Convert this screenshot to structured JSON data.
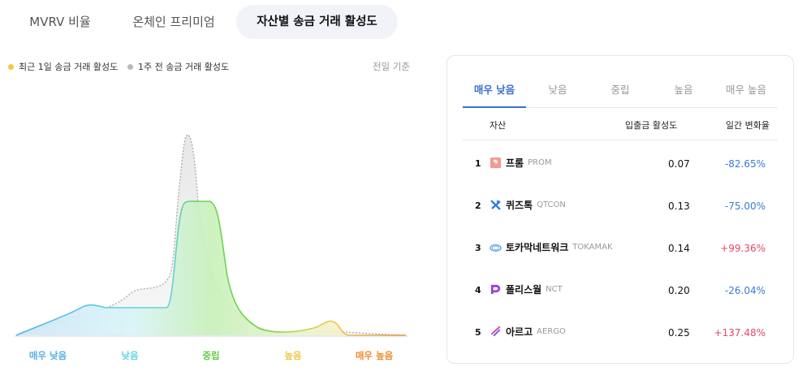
{
  "tabs": [
    {
      "label": "MVRV 비율"
    },
    {
      "label": "온체인 프리미엄"
    },
    {
      "label": "자산별 송금 거래 활성도"
    }
  ],
  "active_tab": 2,
  "legend": {
    "items": [
      {
        "label": "최근 1일 송금 거래 활성도",
        "color": "#f5c83b"
      },
      {
        "label": "1주 전 송금 거래 활성도",
        "color": "#b9b9b9"
      }
    ],
    "note": "전일 기준"
  },
  "chart_data": {
    "type": "area",
    "series": [
      {
        "name": "최근 1일 송금 거래 활성도",
        "color": "#f5c83b"
      },
      {
        "name": "1주 전 송금 거래 활성도",
        "color": "#b9b9b9"
      }
    ],
    "zones": [
      {
        "label": "매우 낮음",
        "color": "#5aaee8"
      },
      {
        "label": "낮음",
        "color": "#65d5e8"
      },
      {
        "label": "중립",
        "color": "#66cc44"
      },
      {
        "label": "높음",
        "color": "#f3c64a"
      },
      {
        "label": "매우 높음",
        "color": "#ef8a2c"
      }
    ]
  },
  "panel": {
    "tabs": [
      "매우 낮음",
      "낮음",
      "중립",
      "높음",
      "매우 높음"
    ],
    "active_tab": 0,
    "headers": {
      "asset": "자산",
      "activity": "입출금 활성도",
      "change": "일간 변화율"
    },
    "rows": [
      {
        "rank": "1",
        "name": "프롬",
        "symbol": "PROM",
        "value": "0.07",
        "change": "-82.65%",
        "icon": "prom-icon"
      },
      {
        "rank": "2",
        "name": "퀴즈톡",
        "symbol": "QTCON",
        "value": "0.13",
        "change": "-75.00%",
        "icon": "qtcon-icon"
      },
      {
        "rank": "3",
        "name": "토카막네트워크",
        "symbol": "TOKAMAK",
        "value": "0.14",
        "change": "+99.36%",
        "icon": "tokamak-icon"
      },
      {
        "rank": "4",
        "name": "폴리스월",
        "symbol": "NCT",
        "value": "0.20",
        "change": "-26.04%",
        "icon": "nct-icon"
      },
      {
        "rank": "5",
        "name": "아르고",
        "symbol": "AERGO",
        "value": "0.25",
        "change": "+137.48%",
        "icon": "aergo-icon"
      }
    ],
    "colors": {
      "negative": "#3a7bd5",
      "positive": "#e5486b"
    }
  }
}
